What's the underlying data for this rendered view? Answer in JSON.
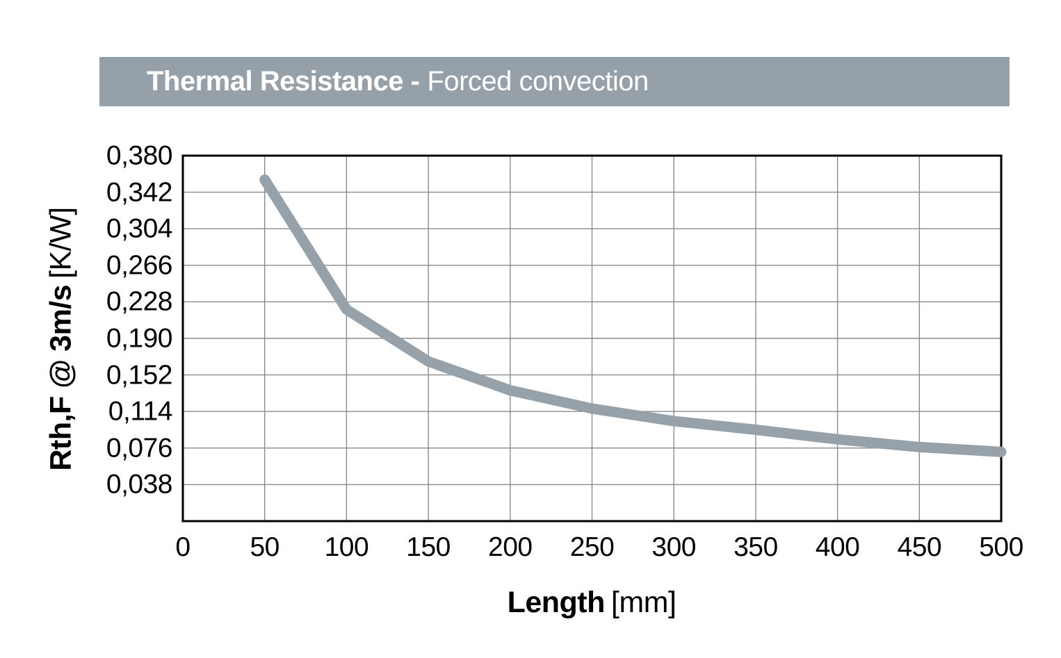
{
  "header": {
    "title_bold": "Thermal Resistance -",
    "title_regular": "Forced convection",
    "bar_color": "#96a0a9",
    "text_color": "#ffffff"
  },
  "chart_data": {
    "type": "line",
    "title": "Thermal Resistance - Forced convection",
    "xlabel": "Length [mm]",
    "xlabel_bold": "Length",
    "xlabel_unit": "[mm]",
    "ylabel": "Rth,F @ 3m/s [K/W]",
    "ylabel_bold": "Rth,F @ 3m/s",
    "ylabel_unit": "[K/W]",
    "x": [
      50,
      100,
      150,
      200,
      250,
      300,
      350,
      400,
      450,
      500
    ],
    "values": [
      0.355,
      0.22,
      0.166,
      0.136,
      0.117,
      0.104,
      0.095,
      0.085,
      0.077,
      0.072
    ],
    "series_name": "Rth,F @ 3m/s",
    "xlim": [
      0,
      500
    ],
    "ylim": [
      0,
      0.38
    ],
    "grid": true,
    "legend": "none",
    "x_ticks": [
      {
        "label": "0",
        "value": 0
      },
      {
        "label": "50",
        "value": 50
      },
      {
        "label": "100",
        "value": 100
      },
      {
        "label": "150",
        "value": 150
      },
      {
        "label": "200",
        "value": 200
      },
      {
        "label": "250",
        "value": 250
      },
      {
        "label": "300",
        "value": 300
      },
      {
        "label": "350",
        "value": 350
      },
      {
        "label": "400",
        "value": 400
      },
      {
        "label": "450",
        "value": 450
      },
      {
        "label": "500",
        "value": 500
      }
    ],
    "y_ticks": [
      {
        "label": "0,380",
        "value": 0.38
      },
      {
        "label": "0,342",
        "value": 0.342
      },
      {
        "label": "0,304",
        "value": 0.304
      },
      {
        "label": "0,266",
        "value": 0.266
      },
      {
        "label": "0,228",
        "value": 0.228
      },
      {
        "label": "0,190",
        "value": 0.19
      },
      {
        "label": "0,152",
        "value": 0.152
      },
      {
        "label": "0,114",
        "value": 0.114
      },
      {
        "label": "0,076",
        "value": 0.076
      },
      {
        "label": "0,038",
        "value": 0.038
      }
    ],
    "line_color": "#96a1aa",
    "line_width": 15,
    "grid_color": "#8a8a8a",
    "border_color": "#000000"
  }
}
